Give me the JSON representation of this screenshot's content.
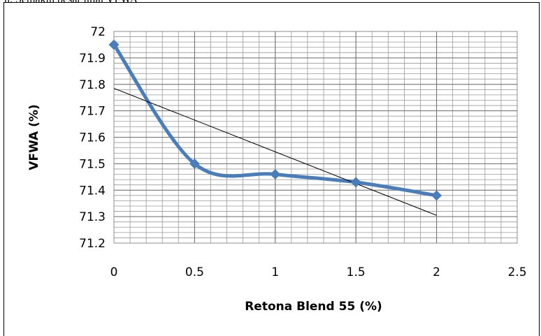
{
  "header_text": "n.   Semakin   besar   nilai   VFWA",
  "chart_data": {
    "type": "scatter",
    "title": "",
    "xlabel": "Retona Blend 55 (%)",
    "ylabel": "VFWA (%)",
    "xlim": [
      0,
      2.5
    ],
    "ylim": [
      71.2,
      72
    ],
    "x_ticks": [
      "0",
      "0.5",
      "1",
      "1.5",
      "2",
      "2.5"
    ],
    "y_ticks": [
      "71.2",
      "71.3",
      "71.4",
      "71.5",
      "71.6",
      "71.7",
      "71.8",
      "71.9",
      "72"
    ],
    "grid": true,
    "legend": "none",
    "series": [
      {
        "x": [
          0,
          0.5,
          1,
          1.5,
          2
        ],
        "y": [
          71.95,
          71.5,
          71.46,
          71.43,
          71.38
        ],
        "line": "smooth",
        "marker": "diamond",
        "color": "#4a7ebb"
      }
    ],
    "trendline": {
      "type": "linear",
      "x": [
        0,
        2
      ],
      "y": [
        71.785,
        71.305
      ],
      "color": "#000000"
    }
  }
}
